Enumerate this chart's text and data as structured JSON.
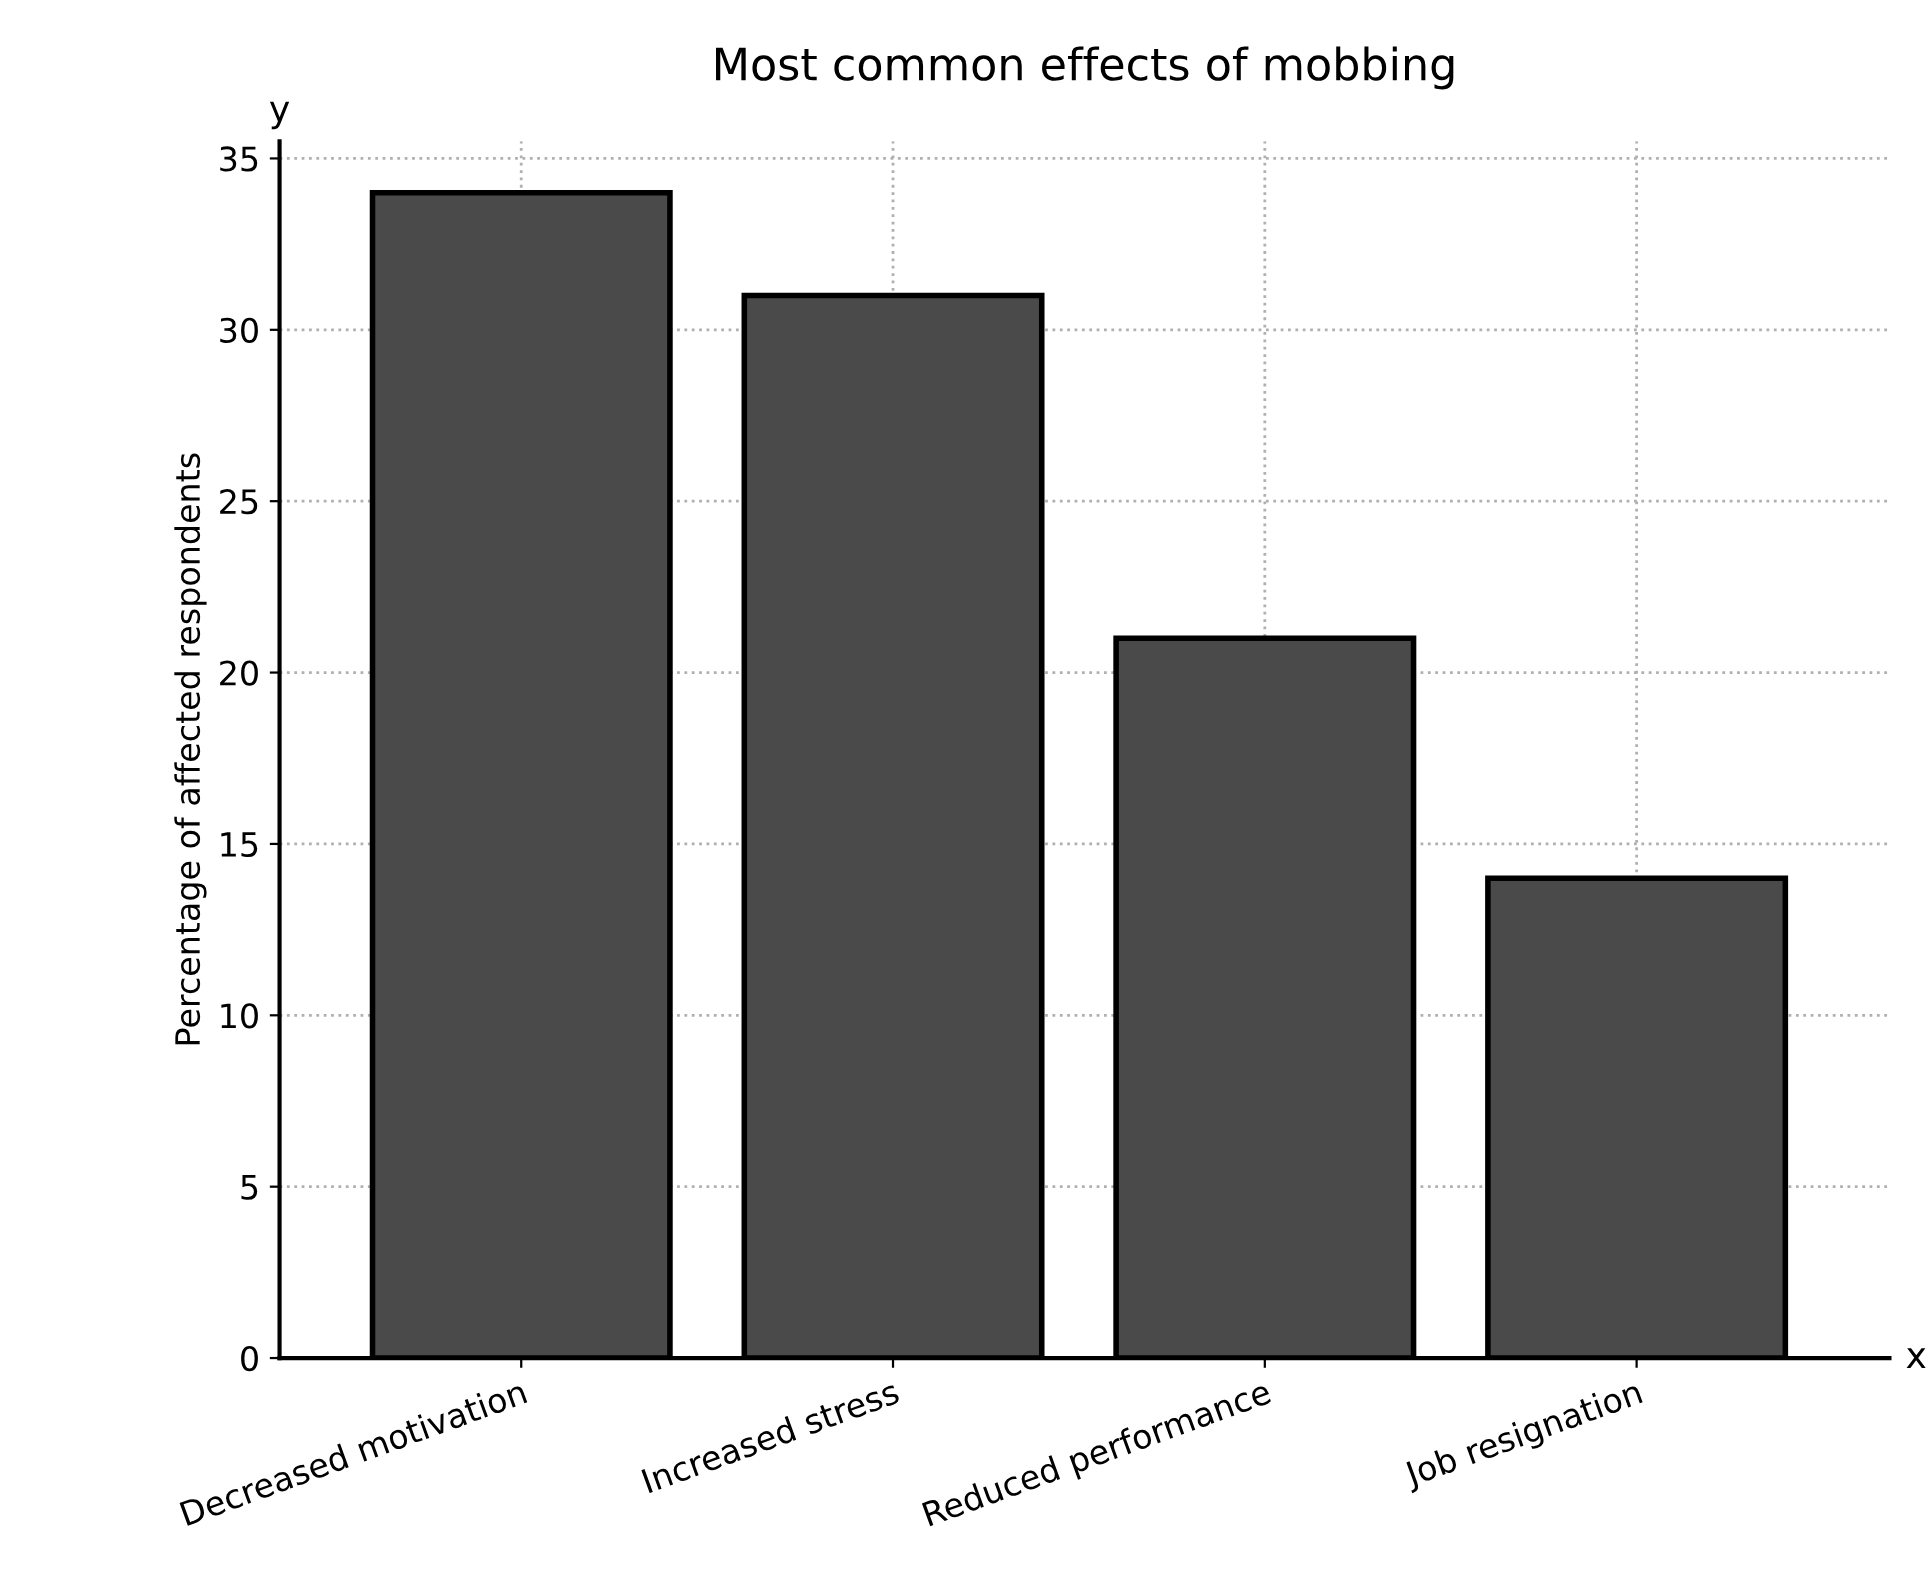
{
  "chart_data": {
    "type": "bar",
    "title": "Most common effects of mobbing",
    "ylabel": "Percentage of affected respondents",
    "categories": [
      "Decreased motivation",
      "Increased stress",
      "Reduced performance",
      "Job resignation"
    ],
    "values": [
      34,
      31,
      21,
      14
    ],
    "color": "#4a4a4a",
    "ylim": [
      0,
      35.5
    ],
    "yticks": [
      0,
      5,
      10,
      15,
      20,
      25,
      30,
      35
    ],
    "grid": true,
    "annotations": [
      "y",
      "x"
    ]
  }
}
